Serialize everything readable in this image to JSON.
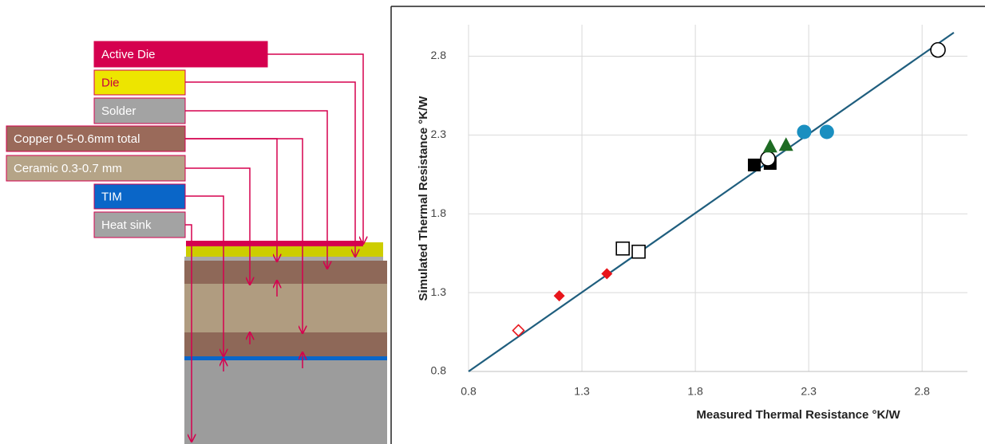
{
  "diagram": {
    "labels": [
      {
        "text": "Active Die",
        "color": "#d5004f",
        "text_color": "#ffffff"
      },
      {
        "text": "Die",
        "color": "#ede500",
        "text_color": "#c8003f"
      },
      {
        "text": "Solder",
        "color": "#a3a3a3",
        "text_color": "#ffffff"
      },
      {
        "text": "Copper 0-5-0.6mm total",
        "color": "#9a6a5a",
        "text_color": "#ffffff"
      },
      {
        "text": "Ceramic 0.3-0.7 mm",
        "color": "#b5a487",
        "text_color": "#ffffff"
      },
      {
        "text": "TIM",
        "color": "#0a66c8",
        "text_color": "#ffffff"
      },
      {
        "text": "Heat sink",
        "color": "#a3a3a3",
        "text_color": "#ffffff"
      }
    ]
  },
  "chart_data": {
    "type": "scatter",
    "x_label": "Measured Thermal Resistance °K/W",
    "y_label": "Simulated Thermal Resistance °K/W",
    "xlim": [
      0.8,
      3.0
    ],
    "ylim": [
      0.8,
      3.0
    ],
    "xticks": [
      0.8,
      1.3,
      1.8,
      2.3,
      2.8
    ],
    "yticks": [
      0.8,
      1.3,
      1.8,
      2.3,
      2.8
    ],
    "grid": true,
    "series": [
      {
        "marker": "diamond-open",
        "color": "#e8151b",
        "x": [
          1.02
        ],
        "values": [
          1.06
        ]
      },
      {
        "marker": "diamond",
        "color": "#e8151b",
        "x": [
          1.2,
          1.41
        ],
        "values": [
          1.28,
          1.42
        ]
      },
      {
        "marker": "square-open",
        "color": "#000000",
        "x": [
          1.48,
          1.55
        ],
        "values": [
          1.58,
          1.56
        ]
      },
      {
        "marker": "square",
        "color": "#000000",
        "x": [
          2.06,
          2.13
        ],
        "values": [
          2.11,
          2.12
        ]
      },
      {
        "marker": "circle-open",
        "color": "#000000",
        "x": [
          2.12,
          2.87
        ],
        "values": [
          2.15,
          2.84
        ]
      },
      {
        "marker": "triangle",
        "color": "#1e6b23",
        "x": [
          2.13,
          2.2
        ],
        "values": [
          2.22,
          2.23
        ]
      },
      {
        "marker": "circle",
        "color": "#1a8fc0",
        "x": [
          2.28,
          2.38
        ],
        "values": [
          2.32,
          2.32
        ]
      }
    ],
    "fit_line": {
      "color": "#1f5e7e",
      "x": [
        0.8,
        2.94
      ],
      "values": [
        0.8,
        2.95
      ]
    }
  }
}
